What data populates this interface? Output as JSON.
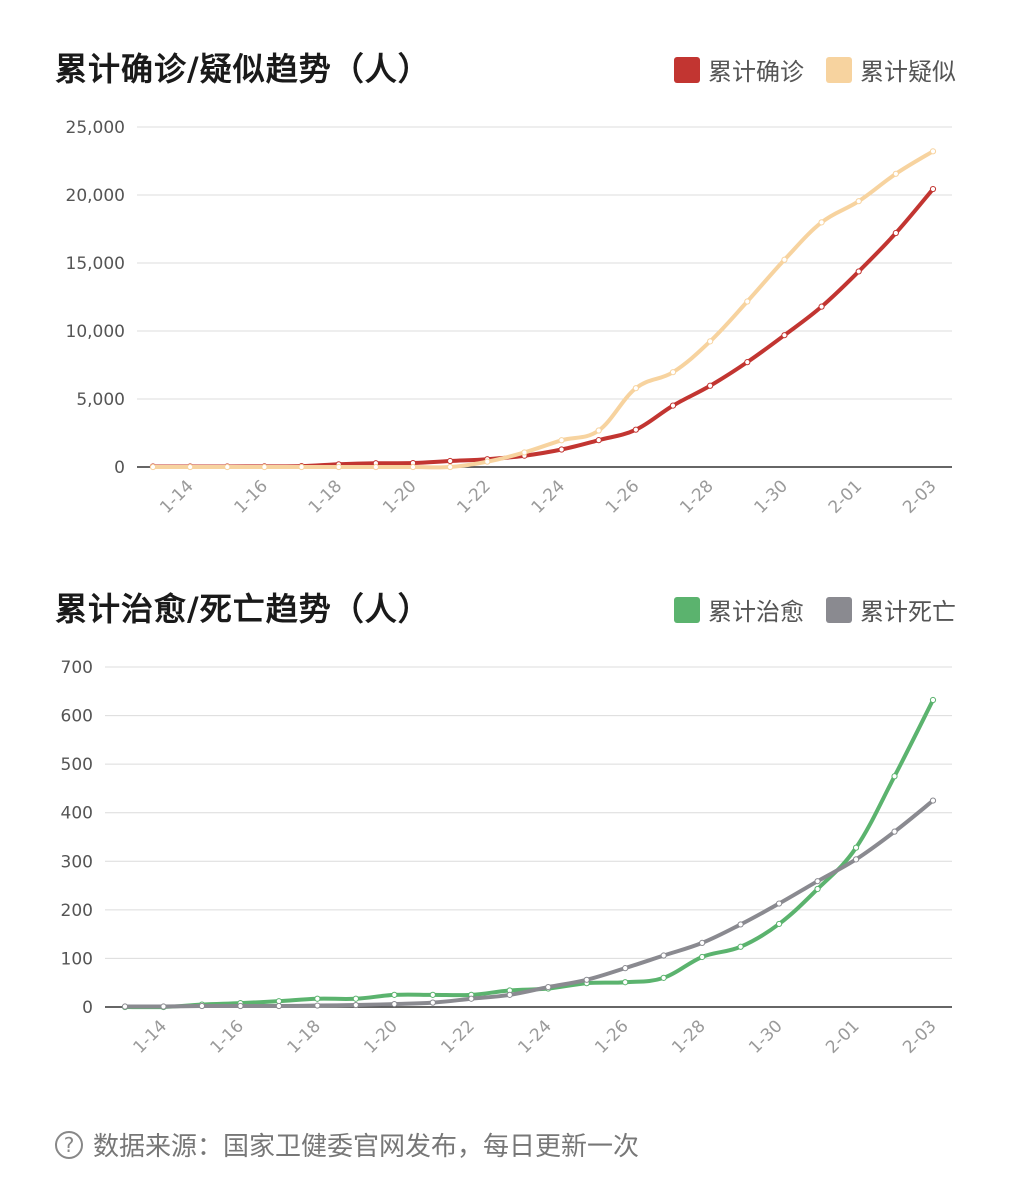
{
  "chart_data": [
    {
      "type": "line",
      "title": "累计确诊/疑似趋势（人）",
      "x": [
        "1-13",
        "1-14",
        "1-15",
        "1-16",
        "1-17",
        "1-18",
        "1-19",
        "1-20",
        "1-21",
        "1-22",
        "1-23",
        "1-24",
        "1-25",
        "1-26",
        "1-27",
        "1-28",
        "1-29",
        "1-30",
        "1-31",
        "2-01",
        "2-02",
        "2-03"
      ],
      "x_tick_labels": [
        "1-14",
        "1-16",
        "1-18",
        "1-20",
        "1-22",
        "1-24",
        "1-26",
        "1-28",
        "1-30",
        "2-01",
        "2-03"
      ],
      "y_ticks": [
        "0",
        "5,000",
        "10,000",
        "15,000",
        "20,000",
        "25,000"
      ],
      "ylim": [
        0,
        25000
      ],
      "grid": true,
      "legend_position": "top-right",
      "series": [
        {
          "name": "累计确诊",
          "color": "#c23531",
          "values": [
            41,
            41,
            41,
            45,
            62,
            198,
            275,
            291,
            440,
            571,
            830,
            1287,
            1975,
            2744,
            4515,
            5974,
            7711,
            9692,
            11791,
            14380,
            17205,
            20438
          ]
        },
        {
          "name": "累计疑似",
          "color": "#f7d39f",
          "values": [
            0,
            0,
            0,
            0,
            0,
            0,
            0,
            0,
            0,
            393,
            1072,
            1965,
            2684,
            5794,
            6973,
            9239,
            12167,
            15238,
            17988,
            19544,
            21558,
            23214
          ]
        }
      ]
    },
    {
      "type": "line",
      "title": "累计治愈/死亡趋势（人）",
      "x": [
        "1-13",
        "1-14",
        "1-15",
        "1-16",
        "1-17",
        "1-18",
        "1-19",
        "1-20",
        "1-21",
        "1-22",
        "1-23",
        "1-24",
        "1-25",
        "1-26",
        "1-27",
        "1-28",
        "1-29",
        "1-30",
        "1-31",
        "2-01",
        "2-02",
        "2-03"
      ],
      "x_tick_labels": [
        "1-14",
        "1-16",
        "1-18",
        "1-20",
        "1-22",
        "1-24",
        "1-26",
        "1-28",
        "1-30",
        "2-01",
        "2-03"
      ],
      "y_ticks": [
        "0",
        "100",
        "200",
        "300",
        "400",
        "500",
        "600",
        "700"
      ],
      "ylim": [
        0,
        700
      ],
      "grid": true,
      "legend_position": "top-right",
      "series": [
        {
          "name": "累计治愈",
          "color": "#5bb36e",
          "values": [
            0,
            0,
            5,
            8,
            12,
            17,
            17,
            25,
            25,
            25,
            34,
            38,
            49,
            51,
            60,
            103,
            124,
            171,
            243,
            328,
            475,
            632
          ]
        },
        {
          "name": "累计死亡",
          "color": "#8a8a90",
          "values": [
            1,
            1,
            2,
            2,
            2,
            3,
            4,
            6,
            9,
            17,
            25,
            41,
            56,
            80,
            106,
            132,
            170,
            213,
            259,
            304,
            361,
            425
          ]
        }
      ]
    }
  ],
  "footer": {
    "icon": "question-circle-icon",
    "text": "数据来源：国家卫健委官网发布，每日更新一次"
  }
}
